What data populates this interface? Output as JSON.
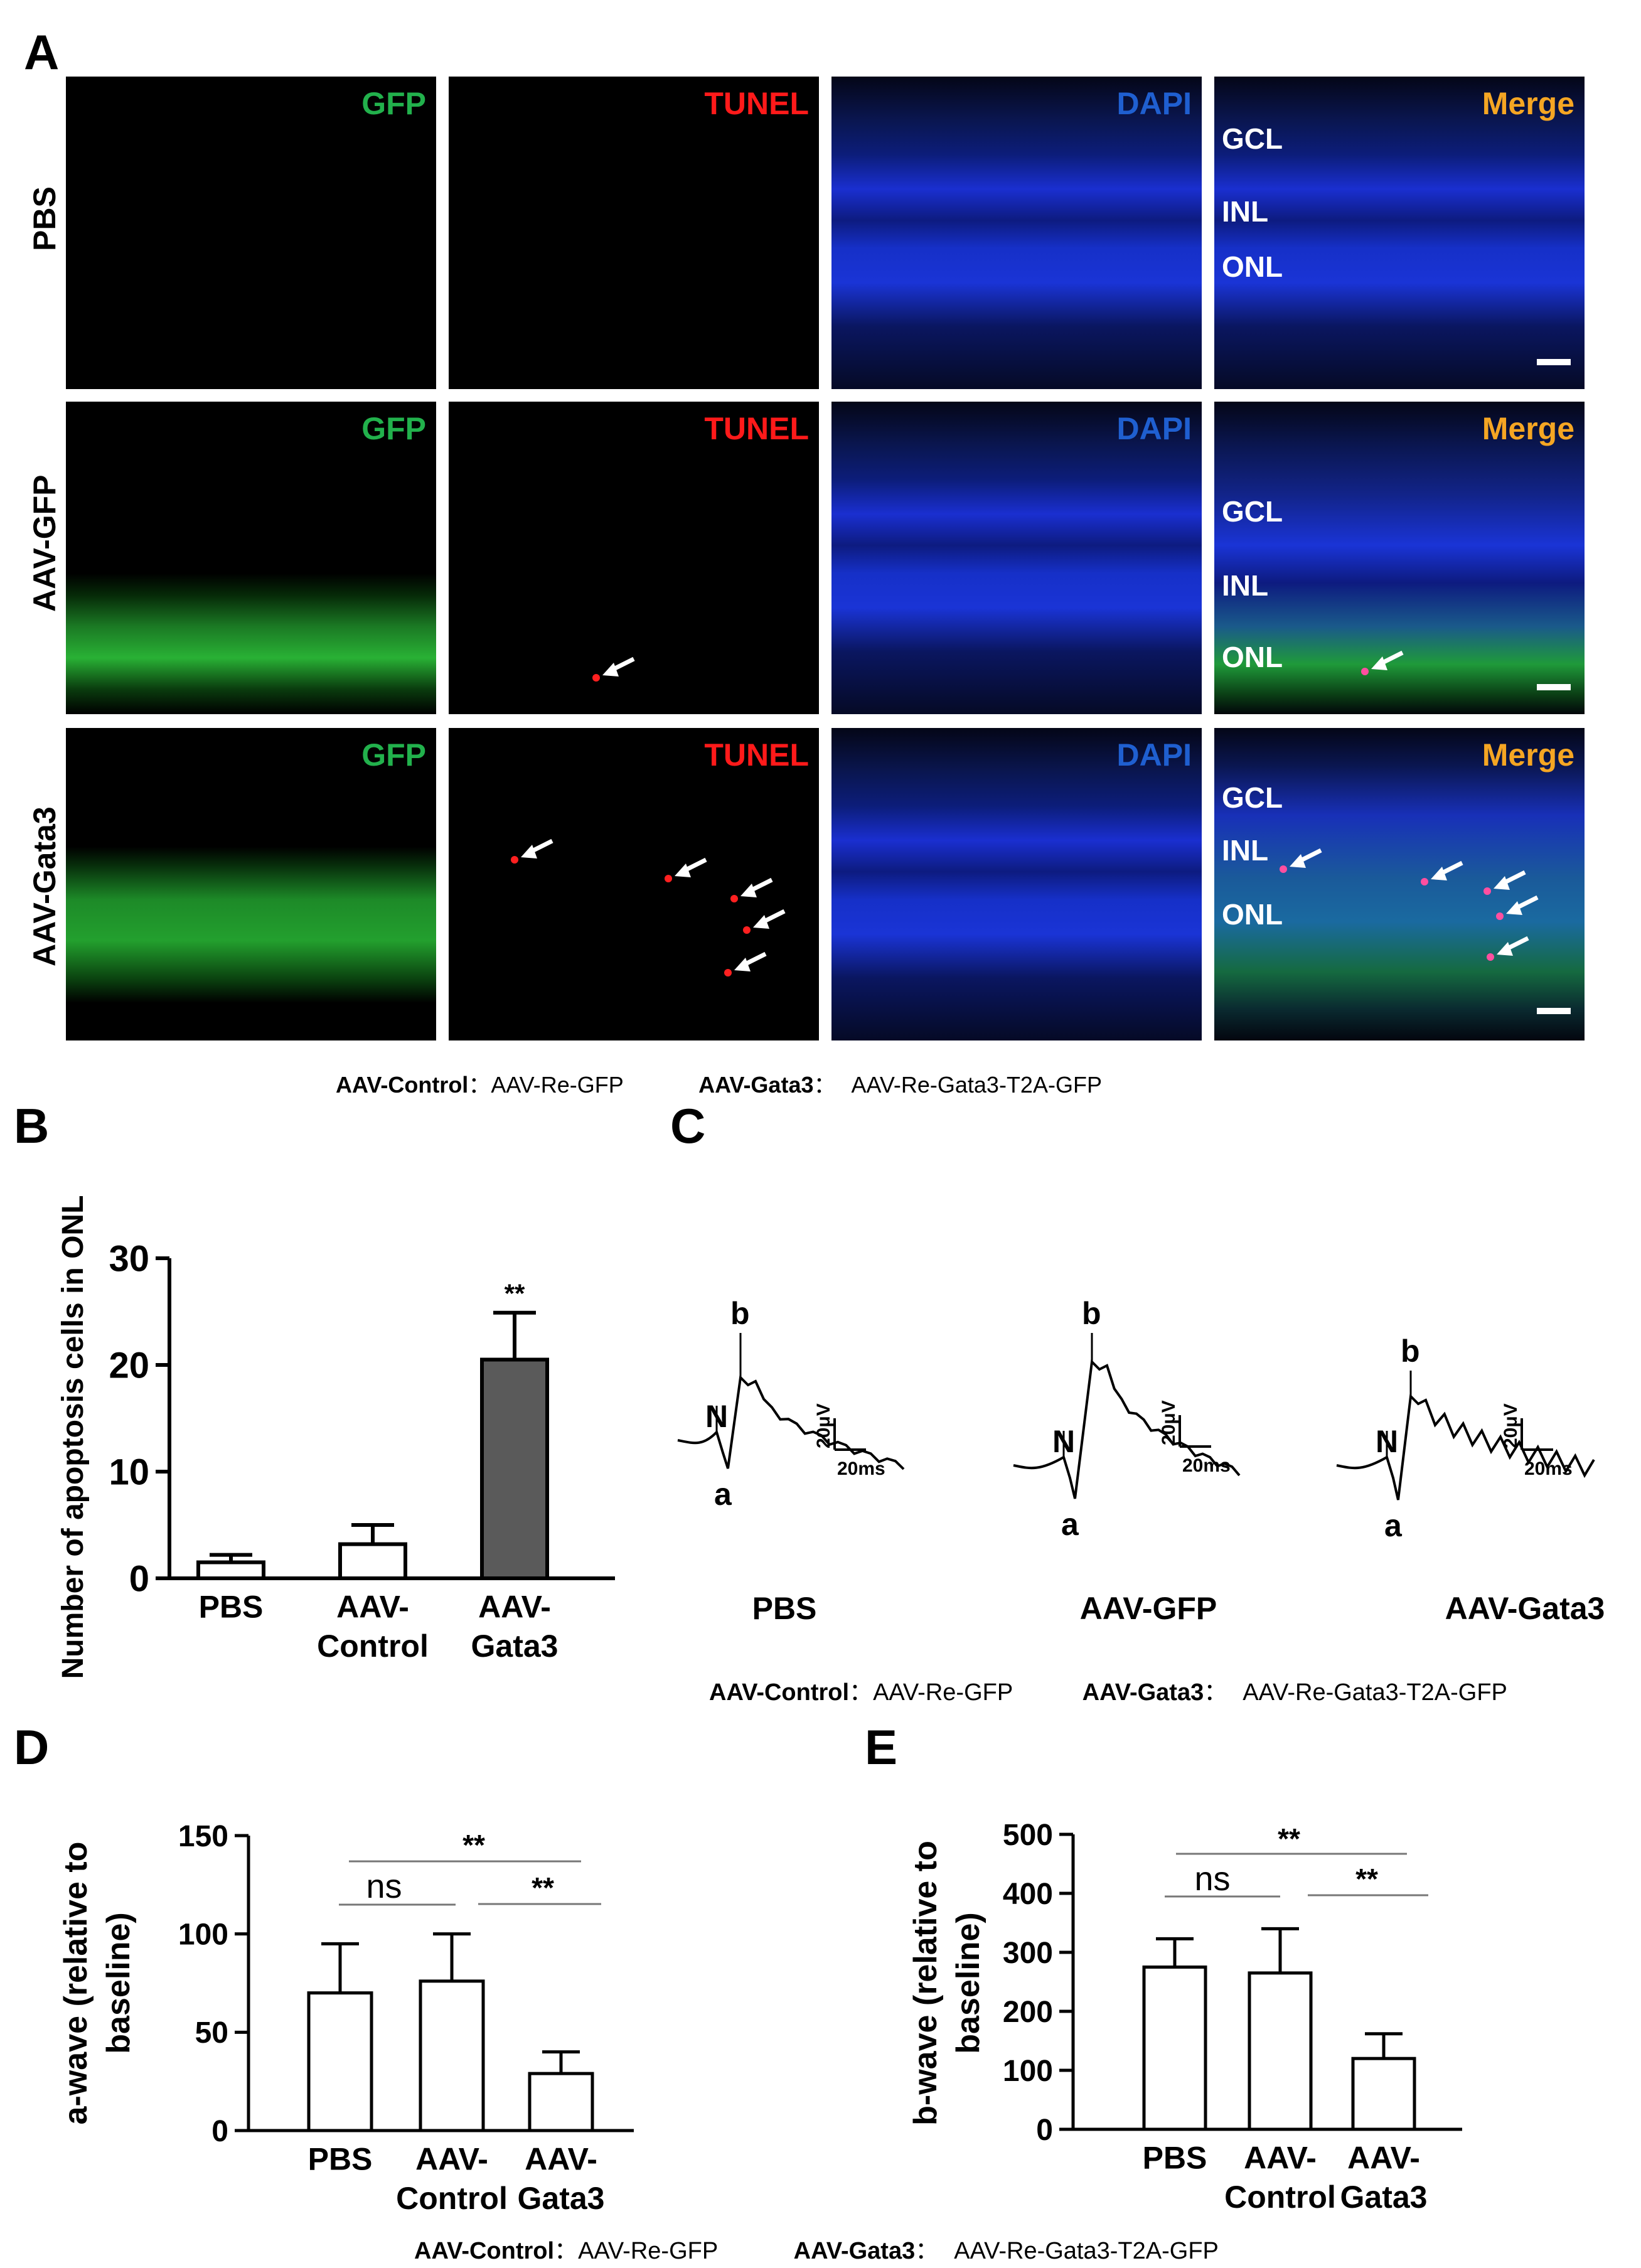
{
  "panel_labels": {
    "A": "A",
    "B": "B",
    "C": "C",
    "D": "D",
    "E": "E"
  },
  "panelA": {
    "rows": [
      "PBS",
      "AAV-GFP",
      "AAV-Gata3"
    ],
    "channels": [
      "GFP",
      "TUNEL",
      "DAPI",
      "Merge"
    ],
    "layers": {
      "gcl": "GCL",
      "inl": "INL",
      "onl": "ONL"
    },
    "colors": {
      "gfp": "#22b14c",
      "tunel": "#ff1a1a",
      "dapi": "#1f5fd0",
      "merge": "#f5a623"
    }
  },
  "legend": {
    "k1": "AAV-Control",
    "sep1": "：",
    "v1": "AAV-Re-GFP",
    "k2": "AAV-Gata3",
    "sep2": "：",
    "v2": "AAV-Re-Gata3-T2A-GFP"
  },
  "panelC": {
    "traces": [
      {
        "name": "PBS",
        "a": "a",
        "b": "b",
        "n": "N"
      },
      {
        "name": "AAV-GFP",
        "a": "a",
        "b": "b",
        "n": "N"
      },
      {
        "name": "AAV-Gata3",
        "a": "a",
        "b": "b",
        "n": "N"
      }
    ],
    "scale_v": "20μV",
    "scale_t": "20ms"
  },
  "chart_data": [
    {
      "type": "bar",
      "panel": "B",
      "categories": [
        "PBS",
        "AAV-Control",
        "AAV-Gata3"
      ],
      "category_lines": [
        [
          "PBS"
        ],
        [
          "AAV-",
          "Control"
        ],
        [
          "AAV-",
          "Gata3"
        ]
      ],
      "values": [
        1.5,
        3.2,
        20.5
      ],
      "errors": [
        0.7,
        1.8,
        4.4
      ],
      "bar_colors": [
        "#ffffff",
        "#ffffff",
        "#5a5a5a"
      ],
      "ylabel": "Number of apoptosis cells in ONL",
      "ylim": [
        0,
        30
      ],
      "yticks": [
        "0",
        "10",
        "20",
        "30"
      ],
      "significance": [
        {
          "bar": 2,
          "label": "**"
        }
      ]
    },
    {
      "type": "bar",
      "panel": "D",
      "categories": [
        "PBS",
        "AAV-Control",
        "AAV-Gata3"
      ],
      "category_lines": [
        [
          "PBS"
        ],
        [
          "AAV-",
          "Control"
        ],
        [
          "AAV-",
          "Gata3"
        ]
      ],
      "values": [
        70,
        76,
        29
      ],
      "errors": [
        25,
        24,
        11
      ],
      "ylabel_lines": [
        "a-wave (relative to",
        "baseline)"
      ],
      "ylim": [
        0,
        150
      ],
      "yticks": [
        "0",
        "50",
        "100",
        "150"
      ],
      "comparisons": [
        {
          "from": 0,
          "to": 2,
          "label": "**"
        },
        {
          "from": 0,
          "to": 1,
          "label": "ns"
        },
        {
          "from": 1,
          "to": 2,
          "label": "**"
        }
      ]
    },
    {
      "type": "bar",
      "panel": "E",
      "categories": [
        "PBS",
        "AAV-Control",
        "AAV-Gata3"
      ],
      "category_lines": [
        [
          "PBS"
        ],
        [
          "AAV-",
          "Control"
        ],
        [
          "AAV-",
          "Gata3"
        ]
      ],
      "values": [
        275,
        265,
        120
      ],
      "errors": [
        48,
        75,
        42
      ],
      "ylabel_lines": [
        "b-wave (relative to",
        "baseline)"
      ],
      "ylim": [
        0,
        500
      ],
      "yticks": [
        "0",
        "100",
        "200",
        "300",
        "400",
        "500"
      ],
      "comparisons": [
        {
          "from": 0,
          "to": 2,
          "label": "**"
        },
        {
          "from": 0,
          "to": 1,
          "label": "ns"
        },
        {
          "from": 1,
          "to": 2,
          "label": "**"
        }
      ]
    }
  ]
}
